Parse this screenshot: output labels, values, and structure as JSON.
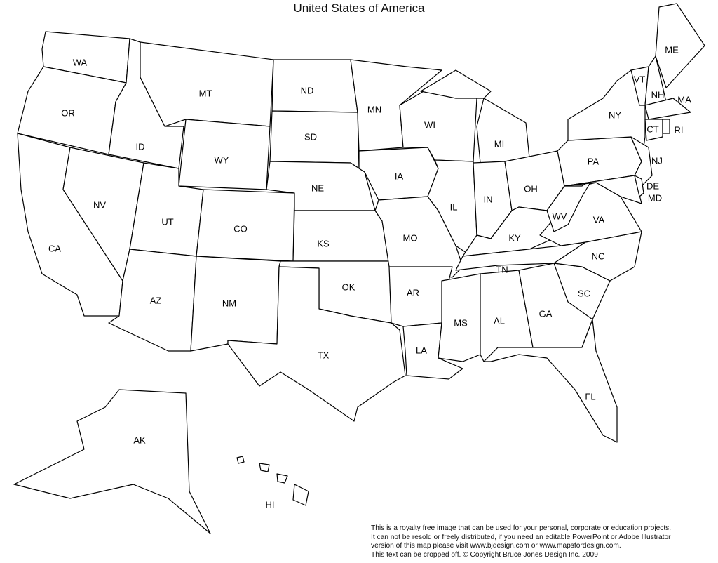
{
  "title": "United States of America",
  "states": {
    "WA": "WA",
    "OR": "OR",
    "CA": "CA",
    "NV": "NV",
    "ID": "ID",
    "MT": "MT",
    "WY": "WY",
    "UT": "UT",
    "CO": "CO",
    "AZ": "AZ",
    "NM": "NM",
    "ND": "ND",
    "SD": "SD",
    "NE": "NE",
    "KS": "KS",
    "OK": "OK",
    "TX": "TX",
    "MN": "MN",
    "IA": "IA",
    "MO": "MO",
    "AR": "AR",
    "LA": "LA",
    "WI": "WI",
    "IL": "IL",
    "MI": "MI",
    "IN": "IN",
    "OH": "OH",
    "KY": "KY",
    "TN": "TN",
    "MS": "MS",
    "AL": "AL",
    "GA": "GA",
    "FL": "FL",
    "SC": "SC",
    "NC": "NC",
    "VA": "VA",
    "WV": "WV",
    "PA": "PA",
    "NY": "NY",
    "NJ": "NJ",
    "DE": "DE",
    "MD": "MD",
    "VT": "VT",
    "NH": "NH",
    "ME": "ME",
    "MA": "MA",
    "CT": "CT",
    "RI": "RI",
    "AK": "AK",
    "HI": "HI"
  },
  "notice": {
    "line1": "This is a royalty free image that can be used for your personal, corporate or education projects.",
    "line2": "It can not be resold or freely distributed, if you need an editable PowerPoint or Adobe Illustrator",
    "line3": "version of this map please visit www.bjdesign.com or www.mapsfordesign.com.",
    "line4": "This text can be cropped off.  © Copyright Bruce Jones Design Inc. 2009"
  }
}
